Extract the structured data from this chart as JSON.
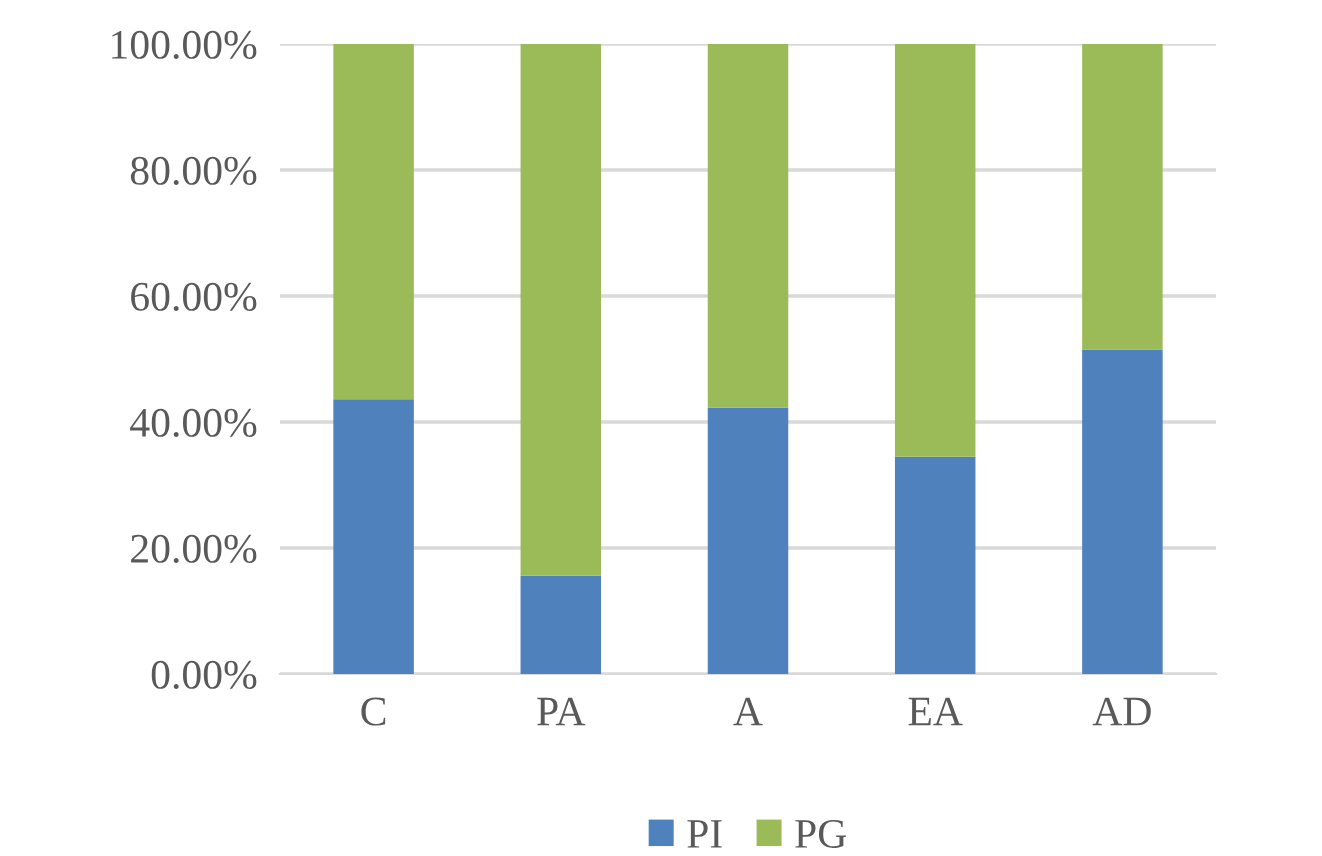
{
  "chart_data": {
    "type": "bar",
    "stacked": true,
    "categories": [
      "C",
      "PA",
      "A",
      "EA",
      "AD"
    ],
    "series": [
      {
        "name": "PI",
        "color": "#4f81bd",
        "values": [
          43.6,
          15.6,
          42.3,
          34.5,
          51.5
        ]
      },
      {
        "name": "PG",
        "color": "#9bbb59",
        "values": [
          56.4,
          84.4,
          57.7,
          65.5,
          48.5
        ]
      }
    ],
    "ylim": [
      0,
      100
    ],
    "yticks": [
      {
        "value": 0,
        "label": "0.00%"
      },
      {
        "value": 20,
        "label": "20.00%"
      },
      {
        "value": 40,
        "label": "40.00%"
      },
      {
        "value": 60,
        "label": "60.00%"
      },
      {
        "value": 80,
        "label": "80.00%"
      },
      {
        "value": 100,
        "label": "100.00%"
      }
    ],
    "grid": "y",
    "legend": "bottom"
  }
}
